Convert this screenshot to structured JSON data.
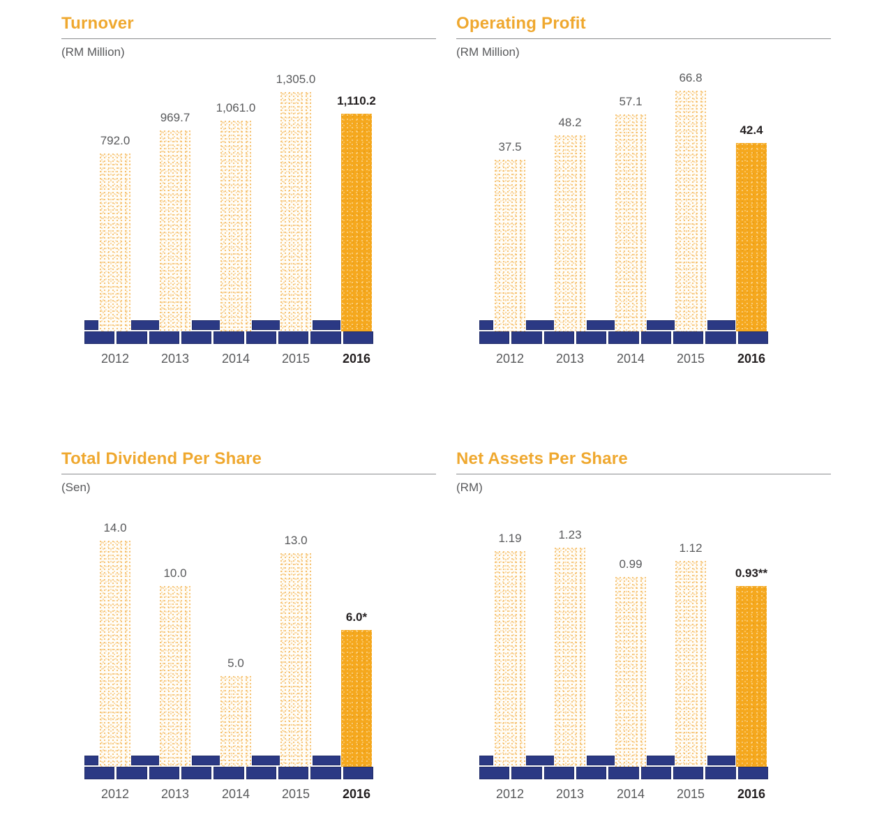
{
  "page": {
    "background": "#FFFFFF",
    "description": "Five-year financial highlights: four bar charts (2012-2016), 2016 bar highlighted"
  },
  "colors": {
    "accent_orange": "#EFA82F",
    "bar_highlight": "#F5A81E",
    "bar_stipple": "#F2AC4A",
    "brick_navy": "#2B3984",
    "text_gray": "#58595B",
    "text_dark": "#231F20",
    "rule_gray": "#8A8C8E"
  },
  "chart_data": [
    {
      "type": "bar",
      "title": "Turnover",
      "unit_label": "(RM Million)",
      "categories": [
        "2012",
        "2013",
        "2014",
        "2015",
        "2016"
      ],
      "values": [
        792.0,
        969.7,
        1061.0,
        1305.0,
        1110.2
      ],
      "value_labels": [
        "792.0",
        "969.7",
        "1,061.0",
        "1,305.0",
        "1,110.2"
      ],
      "highlight_category": "2016",
      "highlight_index": 4,
      "grid": false,
      "legend": "none"
    },
    {
      "type": "bar",
      "title": "Operating Profit",
      "unit_label": "(RM Million)",
      "categories": [
        "2012",
        "2013",
        "2014",
        "2015",
        "2016"
      ],
      "values": [
        37.5,
        48.2,
        57.1,
        66.8,
        42.4
      ],
      "value_labels": [
        "37.5",
        "48.2",
        "57.1",
        "66.8",
        "42.4"
      ],
      "highlight_category": "2016",
      "highlight_index": 4,
      "grid": false,
      "legend": "none"
    },
    {
      "type": "bar",
      "title": "Total Dividend Per Share",
      "unit_label": "(Sen)",
      "categories": [
        "2012",
        "2013",
        "2014",
        "2015",
        "2016"
      ],
      "values": [
        14.0,
        10.0,
        5.0,
        13.0,
        6.0
      ],
      "value_labels": [
        "14.0",
        "10.0",
        "5.0",
        "13.0",
        "6.0*"
      ],
      "footnote_marker": "*",
      "highlight_category": "2016",
      "highlight_index": 4,
      "grid": false,
      "legend": "none"
    },
    {
      "type": "bar",
      "title": "Net Assets Per Share",
      "unit_label": "(RM)",
      "categories": [
        "2012",
        "2013",
        "2014",
        "2015",
        "2016"
      ],
      "values": [
        1.19,
        1.23,
        0.99,
        1.12,
        0.93
      ],
      "value_labels": [
        "1.19",
        "1.23",
        "0.99",
        "1.12",
        "0.93**"
      ],
      "footnote_marker": "**",
      "highlight_category": "2016",
      "highlight_index": 4,
      "grid": false,
      "legend": "none"
    }
  ]
}
